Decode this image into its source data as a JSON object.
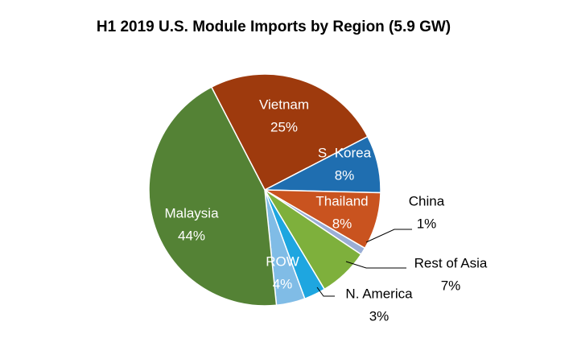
{
  "chart_data": {
    "type": "pie",
    "title": "H1 2019 U.S. Module Imports by Region (5.9 GW)",
    "categories": [
      "Vietnam",
      "S. Korea",
      "Thailand",
      "China",
      "Rest of Asia",
      "N. America",
      "ROW",
      "Malaysia"
    ],
    "values": [
      25,
      8,
      8,
      1,
      7,
      3,
      4,
      44
    ],
    "value_labels": [
      "25%",
      "8%",
      "8%",
      "1%",
      "7%",
      "3%",
      "4%",
      "44%"
    ],
    "colors": [
      "#9e3a0d",
      "#1f6eb0",
      "#c9531f",
      "#9aaed6",
      "#7eb03c",
      "#1ea6e0",
      "#80bce6",
      "#548235"
    ]
  }
}
